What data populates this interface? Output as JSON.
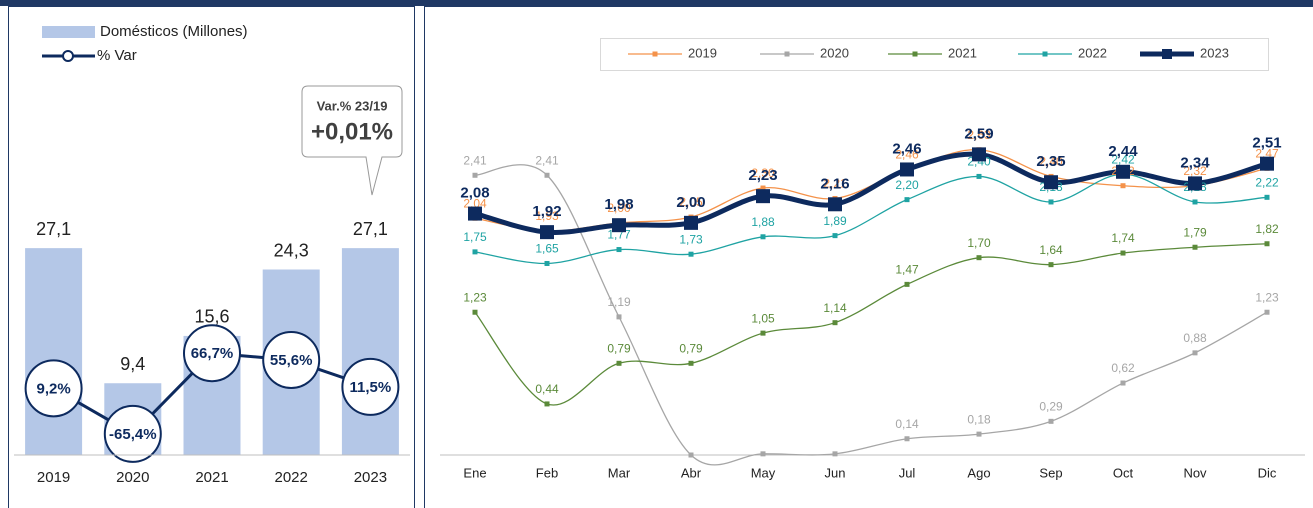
{
  "chart_data": [
    {
      "type": "bar",
      "categories": [
        "2019",
        "2020",
        "2021",
        "2022",
        "2023"
      ],
      "series": [
        {
          "name": "Domésticos (Millones)",
          "type": "bar",
          "color": "#b4c7e7",
          "values": [
            27.1,
            9.4,
            15.6,
            24.3,
            27.1
          ],
          "value_labels": [
            "27,1",
            "9,4",
            "15,6",
            "24,3",
            "27,1"
          ]
        },
        {
          "name": "% Var",
          "type": "line",
          "axis": "y2",
          "color": "#0d2a5e",
          "values": [
            9.2,
            -65.4,
            66.7,
            55.6,
            11.5
          ],
          "value_labels": [
            "9,2%",
            "-65,4%",
            "66,7%",
            "55,6%",
            "11,5%"
          ]
        }
      ],
      "ylim": [
        0,
        30
      ],
      "y2lim": [
        -100,
        275
      ],
      "annotation": {
        "title": "Var.% 23/19",
        "value": "+0,01%"
      },
      "legend": "top-left"
    },
    {
      "type": "line",
      "categories": [
        "Ene",
        "Feb",
        "Mar",
        "Abr",
        "May",
        "Jun",
        "Jul",
        "Ago",
        "Sep",
        "Oct",
        "Nov",
        "Dic"
      ],
      "series": [
        {
          "name": "2019",
          "color": "#f4924a",
          "values": [
            2.04,
            1.93,
            2.0,
            2.05,
            2.3,
            2.21,
            2.46,
            2.63,
            2.4,
            2.32,
            2.32,
            2.47
          ],
          "value_labels": [
            "2,04",
            "1,93",
            "2,00",
            "2,05",
            "2,30",
            "2,21",
            "2,46",
            "2,63",
            "2,40",
            "2,32",
            "2,32",
            "2,47"
          ]
        },
        {
          "name": "2020",
          "color": "#a6a6a6",
          "values": [
            2.41,
            2.41,
            1.19,
            0.0,
            0.01,
            0.01,
            0.14,
            0.18,
            0.29,
            0.62,
            0.88,
            1.23
          ],
          "value_labels": [
            "2,41",
            "2,41",
            "1,19",
            null,
            null,
            null,
            "0,14",
            "0,18",
            "0,29",
            "0,62",
            "0,88",
            "1,23"
          ]
        },
        {
          "name": "2021",
          "color": "#5b8a3a",
          "values": [
            1.23,
            0.44,
            0.79,
            0.79,
            1.05,
            1.14,
            1.47,
            1.7,
            1.64,
            1.74,
            1.79,
            1.82
          ],
          "value_labels": [
            "1,23",
            "0,44",
            "0,79",
            "0,79",
            "1,05",
            "1,14",
            "1,47",
            "1,70",
            "1,64",
            "1,74",
            "1,79",
            "1,82"
          ]
        },
        {
          "name": "2022",
          "color": "#1fa3a3",
          "values": [
            1.75,
            1.65,
            1.77,
            1.73,
            1.88,
            1.89,
            2.2,
            2.4,
            2.18,
            2.42,
            2.18,
            2.22
          ],
          "value_labels": [
            "1,75",
            "1,65",
            "1,77",
            "1,73",
            "1,88",
            "1,89",
            "2,20",
            "2,40",
            "2,18",
            "2,42",
            "2,18",
            "2,22"
          ]
        },
        {
          "name": "2023",
          "color": "#0d2a5e",
          "values": [
            2.08,
            1.92,
            1.98,
            2.0,
            2.23,
            2.16,
            2.46,
            2.59,
            2.35,
            2.44,
            2.34,
            2.51
          ],
          "value_labels": [
            "2,08",
            "1,92",
            "1,98",
            "2,00",
            "2,23",
            "2,16",
            "2,46",
            "2,59",
            "2,35",
            "2,44",
            "2,34",
            "2,51"
          ]
        }
      ],
      "ylim": [
        0,
        2.8
      ],
      "legend": "top"
    }
  ]
}
